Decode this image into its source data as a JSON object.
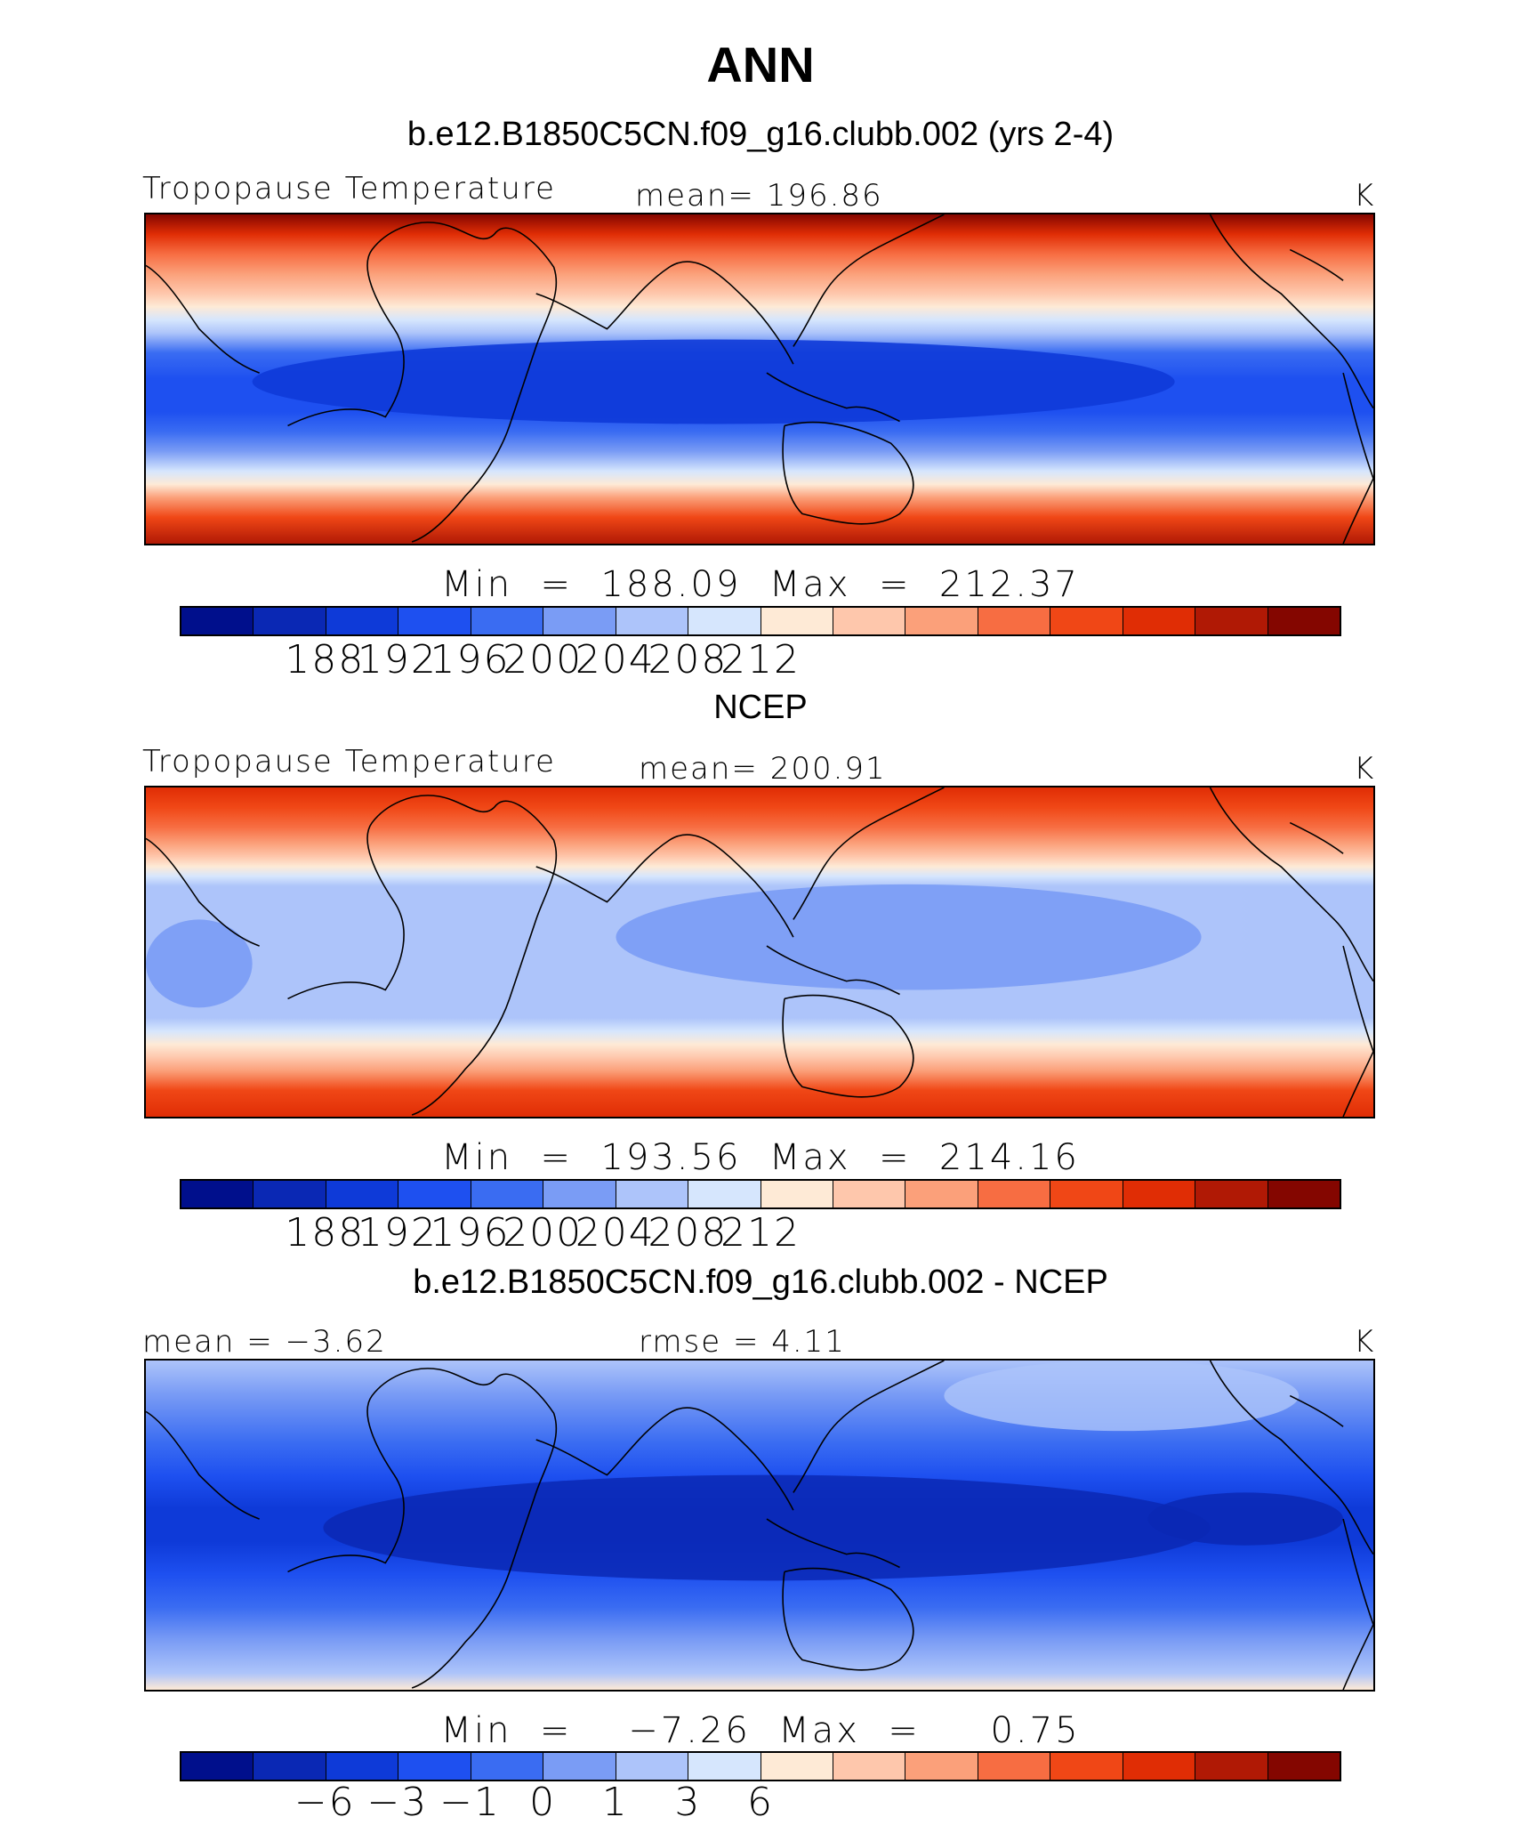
{
  "title": "ANN",
  "palette": [
    "#000f8c",
    "#0a28b4",
    "#0e3ad8",
    "#1e50f0",
    "#3a6cf2",
    "#7a9cf5",
    "#adc4fa",
    "#d6e6fd",
    "#feead6",
    "#fec7ac",
    "#fba07a",
    "#f76d42",
    "#f04716",
    "#e02d05",
    "#b01905",
    "#840600"
  ],
  "panels": [
    {
      "subtitle": "b.e12.B1850C5CN.f09_g16.clubb.002 (yrs 2-4)",
      "left_label": "Tropopause Temperature",
      "center_label": "mean=  196.86",
      "unit": "K",
      "minmax": "Min  =  188.09  Max  =  212.37",
      "ticks": [
        "188",
        "192",
        "196",
        "200",
        "204",
        "208",
        "212"
      ]
    },
    {
      "subtitle": "NCEP",
      "left_label": "Tropopause Temperature",
      "center_label": "mean=  200.91",
      "unit": "K",
      "minmax": "Min  =  193.56  Max  =  214.16",
      "ticks": [
        "188",
        "192",
        "196",
        "200",
        "204",
        "208",
        "212"
      ]
    },
    {
      "subtitle": "b.e12.B1850C5CN.f09_g16.clubb.002 - NCEP",
      "left_label": "mean =    −3.62",
      "center_label": "rmse =     4.11",
      "unit": "K",
      "minmax": "Min  =    −7.26  Max  =     0.75",
      "ticks": [
        "−6",
        "−3",
        "−1",
        "0",
        "1",
        "3",
        "6"
      ]
    }
  ]
}
